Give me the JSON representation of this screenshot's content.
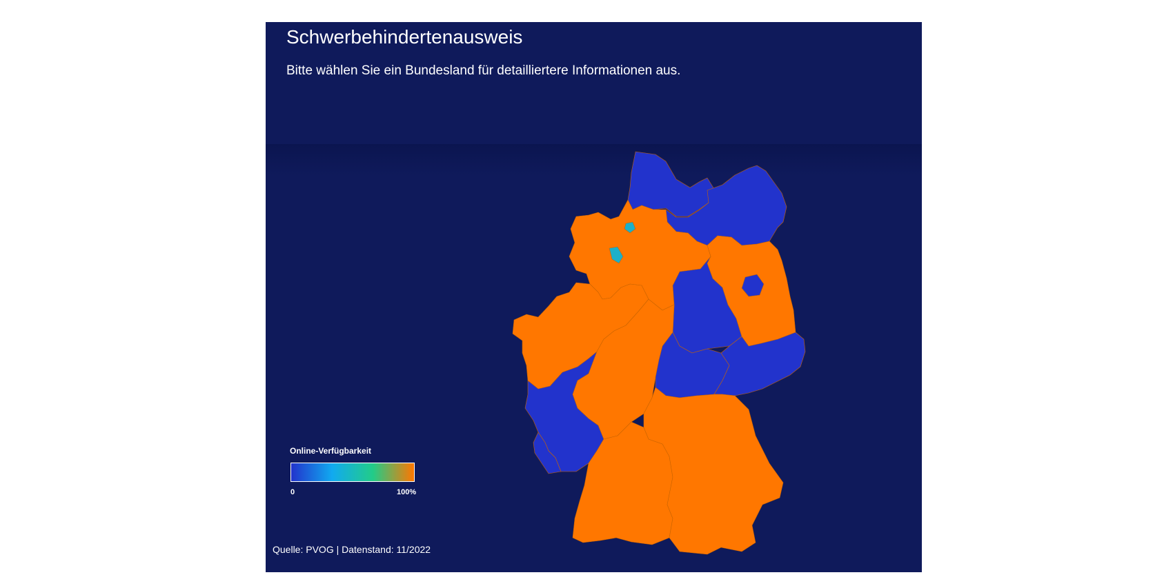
{
  "title": "Schwerbehindertenausweis",
  "subtitle": "Bitte wählen Sie ein Bundesland für detailliertere Informationen aus.",
  "source": "Quelle: PVOG | Datenstand: 11/2022",
  "legend": {
    "title": "Online-Verfügbarkeit",
    "min_label": "0",
    "max_label": "100%",
    "gradient_colors": [
      "#2233cc",
      "#11aaf0",
      "#22cc88",
      "#ff7700"
    ]
  },
  "colors": {
    "background": "#0f1a5b",
    "low": "#2233cc",
    "mid": "#1cb0c9",
    "high": "#ff7700"
  },
  "map_data": {
    "type": "choropleth",
    "regions": [
      {
        "state": "Schleswig-Holstein",
        "availability": 0
      },
      {
        "state": "Mecklenburg-Vorpommern",
        "availability": 0
      },
      {
        "state": "Hamburg",
        "availability": 0.4
      },
      {
        "state": "Bremen",
        "availability": 0.4
      },
      {
        "state": "Niedersachsen",
        "availability": 1
      },
      {
        "state": "Brandenburg",
        "availability": 1
      },
      {
        "state": "Berlin",
        "availability": 0
      },
      {
        "state": "Sachsen-Anhalt",
        "availability": 0
      },
      {
        "state": "Nordrhein-Westfalen",
        "availability": 1
      },
      {
        "state": "Hessen",
        "availability": 1
      },
      {
        "state": "Thüringen",
        "availability": 0
      },
      {
        "state": "Sachsen",
        "availability": 0
      },
      {
        "state": "Rheinland-Pfalz",
        "availability": 0
      },
      {
        "state": "Saarland",
        "availability": 0
      },
      {
        "state": "Baden-Württemberg",
        "availability": 1
      },
      {
        "state": "Bayern",
        "availability": 1
      }
    ]
  }
}
